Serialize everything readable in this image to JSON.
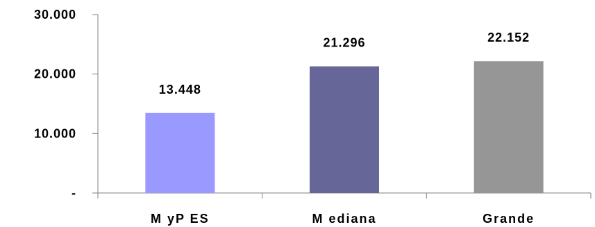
{
  "chart_data": {
    "type": "bar",
    "categories": [
      "MyPES",
      "Mediana",
      "Grande"
    ],
    "category_labels": [
      "M yP ES",
      "M ediana",
      "Grande"
    ],
    "values": [
      13448,
      21296,
      22152
    ],
    "data_labels": [
      "13.448",
      "21.296",
      "22.152"
    ],
    "bar_colors": [
      "#9999ff",
      "#666699",
      "#969696"
    ],
    "ylim": [
      0,
      30000
    ],
    "y_ticks": [
      0,
      10000,
      20000,
      30000
    ],
    "y_tick_labels": [
      "-",
      "10.000",
      "20.000",
      "30.000"
    ],
    "title": "",
    "xlabel": "",
    "ylabel": "",
    "grid": false,
    "legend": "none"
  }
}
